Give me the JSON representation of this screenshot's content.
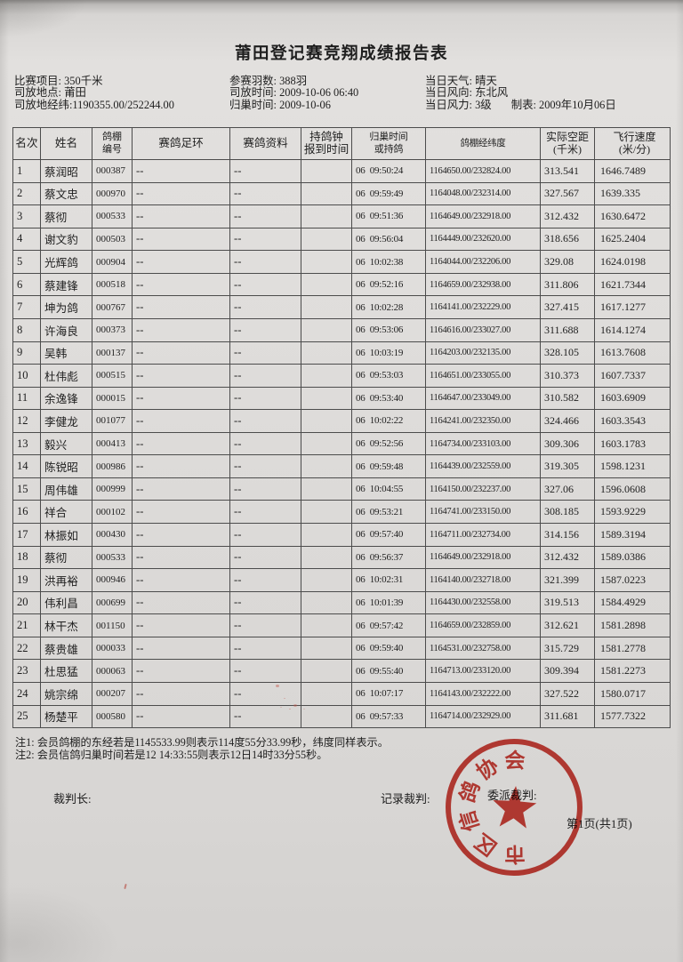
{
  "title": "莆田登记赛竞翔成绩报告表",
  "info": {
    "col1": [
      "比赛项目: 350千米",
      "司放地点: 莆田",
      "司放地经纬:1190355.00/252244.00"
    ],
    "col2": [
      "参赛羽数: 388羽",
      "司放时间: 2009-10-06 06:40",
      "归巢时间: 2009-10-06"
    ],
    "col3": [
      "当日天气: 晴天",
      "当日风向: 东北风",
      "当日风力: 3级"
    ],
    "made": "制表: 2009年10月06日"
  },
  "table": {
    "headers": [
      [
        "名次"
      ],
      [
        "姓名"
      ],
      [
        "鸽棚",
        "编号"
      ],
      [
        "赛鸽足环"
      ],
      [
        "赛鸽资料"
      ],
      [
        "持鸽钟",
        "报到时间"
      ],
      [
        "归巢时间",
        "或持鸽"
      ],
      [
        "鸽棚经纬度"
      ],
      [
        "实际空距",
        "(千米)"
      ],
      [
        "飞行速度",
        "(米/分)"
      ]
    ],
    "rows": [
      [
        "1",
        "蔡润昭",
        "000387",
        "--",
        "--",
        "",
        "06  09:50:24",
        "1164650.00/232824.00",
        "313.541",
        "1646.7489"
      ],
      [
        "2",
        "蔡文忠",
        "000970",
        "--",
        "--",
        "",
        "06  09:59:49",
        "1164048.00/232314.00",
        "327.567",
        "1639.335"
      ],
      [
        "3",
        "蔡彻",
        "000533",
        "--",
        "--",
        "",
        "06  09:51:36",
        "1164649.00/232918.00",
        "312.432",
        "1630.6472"
      ],
      [
        "4",
        "谢文豹",
        "000503",
        "--",
        "--",
        "",
        "06  09:56:04",
        "1164449.00/232620.00",
        "318.656",
        "1625.2404"
      ],
      [
        "5",
        "光辉鸽",
        "000904",
        "--",
        "--",
        "",
        "06  10:02:38",
        "1164044.00/232206.00",
        "329.08",
        "1624.0198"
      ],
      [
        "6",
        "蔡建锋",
        "000518",
        "--",
        "--",
        "",
        "06  09:52:16",
        "1164659.00/232938.00",
        "311.806",
        "1621.7344"
      ],
      [
        "7",
        "坤为鸽",
        "000767",
        "--",
        "--",
        "",
        "06  10:02:28",
        "1164141.00/232229.00",
        "327.415",
        "1617.1277"
      ],
      [
        "8",
        "许海良",
        "000373",
        "--",
        "--",
        "",
        "06  09:53:06",
        "1164616.00/233027.00",
        "311.688",
        "1614.1274"
      ],
      [
        "9",
        "吴韩",
        "000137",
        "--",
        "--",
        "",
        "06  10:03:19",
        "1164203.00/232135.00",
        "328.105",
        "1613.7608"
      ],
      [
        "10",
        "杜伟彪",
        "000515",
        "--",
        "--",
        "",
        "06  09:53:03",
        "1164651.00/233055.00",
        "310.373",
        "1607.7337"
      ],
      [
        "11",
        "余逸锋",
        "000015",
        "--",
        "--",
        "",
        "06  09:53:40",
        "1164647.00/233049.00",
        "310.582",
        "1603.6909"
      ],
      [
        "12",
        "李健龙",
        "001077",
        "--",
        "--",
        "",
        "06  10:02:22",
        "1164241.00/232350.00",
        "324.466",
        "1603.3543"
      ],
      [
        "13",
        "毅兴",
        "000413",
        "--",
        "--",
        "",
        "06  09:52:56",
        "1164734.00/233103.00",
        "309.306",
        "1603.1783"
      ],
      [
        "14",
        "陈锐昭",
        "000986",
        "--",
        "--",
        "",
        "06  09:59:48",
        "1164439.00/232559.00",
        "319.305",
        "1598.1231"
      ],
      [
        "15",
        "周伟雄",
        "000999",
        "--",
        "--",
        "",
        "06  10:04:55",
        "1164150.00/232237.00",
        "327.06",
        "1596.0608"
      ],
      [
        "16",
        "祥合",
        "000102",
        "--",
        "--",
        "",
        "06  09:53:21",
        "1164741.00/233150.00",
        "308.185",
        "1593.9229"
      ],
      [
        "17",
        "林振如",
        "000430",
        "--",
        "--",
        "",
        "06  09:57:40",
        "1164711.00/232734.00",
        "314.156",
        "1589.3194"
      ],
      [
        "18",
        "蔡彻",
        "000533",
        "--",
        "--",
        "",
        "06  09:56:37",
        "1164649.00/232918.00",
        "312.432",
        "1589.0386"
      ],
      [
        "19",
        "洪再裕",
        "000946",
        "--",
        "--",
        "",
        "06  10:02:31",
        "1164140.00/232718.00",
        "321.399",
        "1587.0223"
      ],
      [
        "20",
        "伟利昌",
        "000699",
        "--",
        "--",
        "",
        "06  10:01:39",
        "1164430.00/232558.00",
        "319.513",
        "1584.4929"
      ],
      [
        "21",
        "林干杰",
        "001150",
        "--",
        "--",
        "",
        "06  09:57:42",
        "1164659.00/232859.00",
        "312.621",
        "1581.2898"
      ],
      [
        "22",
        "蔡贵雄",
        "000033",
        "--",
        "--",
        "",
        "06  09:59:40",
        "1164531.00/232758.00",
        "315.729",
        "1581.2778"
      ],
      [
        "23",
        "杜思猛",
        "000063",
        "--",
        "--",
        "",
        "06  09:55:40",
        "1164713.00/233120.00",
        "309.394",
        "1581.2273"
      ],
      [
        "24",
        "姚宗绵",
        "000207",
        "--",
        "--",
        "",
        "06  10:07:17",
        "1164143.00/232222.00",
        "327.522",
        "1580.0717"
      ],
      [
        "25",
        "杨楚平",
        "000580",
        "--",
        "--",
        "",
        "06  09:57:33",
        "1164714.00/232929.00",
        "311.681",
        "1577.7322"
      ]
    ]
  },
  "notes": [
    "注1: 会员鸽棚的东经若是1145533.99则表示114度55分33.99秒，纬度同样表示。",
    "注2: 会员信鸽归巢时间若是12 14:33:55则表示12日14时33分55秒。"
  ],
  "footer": {
    "chief_judge": "裁判长:",
    "record_judge": "记录裁判:",
    "assigned_judge": "委派裁判:",
    "page_indicator": "第1页(共1页)"
  },
  "stamp": {
    "ring_text": "市区信鸽协会",
    "color": "#c8281e"
  },
  "colors": {
    "paper": "#dedcda",
    "ink": "#1e1e1e",
    "table_border": "#4c4c4c",
    "stamp_red": "#c8281e"
  }
}
